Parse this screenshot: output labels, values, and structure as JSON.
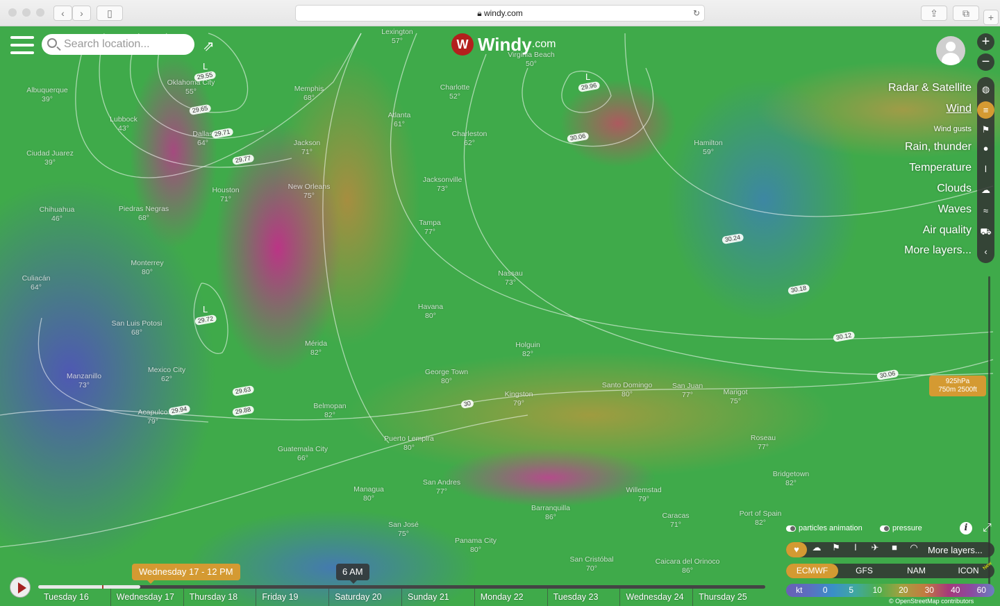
{
  "browser": {
    "url": "windy.com",
    "back": "‹",
    "forward": "›"
  },
  "header": {
    "search_placeholder": "Search location...",
    "logo_main": "Windy",
    "logo_suffix": ".com"
  },
  "layers": {
    "items": [
      {
        "label": "Radar & Satellite",
        "icon": "globe-icon",
        "glyph": "◍"
      },
      {
        "label": "Wind",
        "icon": "wind-icon",
        "glyph": "≡",
        "selected": true
      },
      {
        "label": "Wind gusts",
        "icon": "windsock-icon",
        "glyph": "⚑",
        "small": true
      },
      {
        "label": "Rain, thunder",
        "icon": "drop-icon",
        "glyph": "●"
      },
      {
        "label": "Temperature",
        "icon": "thermometer-icon",
        "glyph": "ǀ"
      },
      {
        "label": "Clouds",
        "icon": "cloud-icon",
        "glyph": "☁"
      },
      {
        "label": "Waves",
        "icon": "waves-icon",
        "glyph": "≈"
      },
      {
        "label": "Air quality",
        "icon": "car-icon",
        "glyph": "⛟"
      },
      {
        "label": "More layers...",
        "icon": "chevron-left-icon",
        "glyph": "‹"
      }
    ]
  },
  "altitude": {
    "line1": "925hPa",
    "line2": "750m 2500ft"
  },
  "toggles": {
    "particles": "particles animation",
    "pressure": "pressure"
  },
  "quick_layers": {
    "icons": [
      {
        "icon": "heart-icon",
        "glyph": "♥"
      },
      {
        "icon": "cloud-sun-icon",
        "glyph": "☁"
      },
      {
        "icon": "windsock-icon",
        "glyph": "⚑"
      },
      {
        "icon": "thermometer-icon",
        "glyph": "ǀ"
      },
      {
        "icon": "plane-icon",
        "glyph": "✈"
      },
      {
        "icon": "camera-icon",
        "glyph": "■"
      },
      {
        "icon": "radar-icon",
        "glyph": "◠"
      }
    ],
    "more": "More layers..."
  },
  "models": {
    "items": [
      "ECMWF",
      "GFS",
      "NAM",
      "ICON"
    ],
    "selected": "ECMWF",
    "new_badge": "New"
  },
  "scale": {
    "unit": "kt",
    "values": [
      "0",
      "5",
      "10",
      "20",
      "30",
      "40",
      "60"
    ]
  },
  "attribution": "© OpenStreetMap contributors",
  "timeline": {
    "current": "Wednesday 17 - 12 PM",
    "hover": "6 AM",
    "progress_days": 1.4,
    "days": [
      "Tuesday 16",
      "Wednesday 17",
      "Thursday 18",
      "Friday 19",
      "Saturday 20",
      "Sunday 21",
      "Monday 22",
      "Tuesday 23",
      "Wednesday 24",
      "Thursday 25"
    ]
  },
  "cities": [
    [
      "Lexington",
      "57°"
    ],
    [
      "Oklahoma City",
      "55°"
    ],
    [
      "Memphis",
      "68°"
    ],
    [
      "Albuquerque",
      "39°"
    ],
    [
      "Charlotte",
      "52°"
    ],
    [
      "Virginia Beach",
      "50°"
    ],
    [
      "Lubbock",
      "43°"
    ],
    [
      "Atlanta",
      "61°"
    ],
    [
      "Dallas",
      "64°"
    ],
    [
      "Charleston",
      "62°"
    ],
    [
      "Jackson",
      "71°"
    ],
    [
      "Ciudad Juarez",
      "39°"
    ],
    [
      "Hamilton",
      "59°"
    ],
    [
      "Houston",
      "71°"
    ],
    [
      "New Orleans",
      "75°"
    ],
    [
      "Jacksonville",
      "73°"
    ],
    [
      "Chihuahua",
      "46°"
    ],
    [
      "Piedras Negras",
      "68°"
    ],
    [
      "Tampa",
      "77°"
    ],
    [
      "Monterrey",
      "80°"
    ],
    [
      "Nassau",
      "73°"
    ],
    [
      "Culiacán",
      "64°"
    ],
    [
      "Havana",
      "80°"
    ],
    [
      "San Luis Potosi",
      "68°"
    ],
    [
      "Mérida",
      "82°"
    ],
    [
      "Holguin",
      "82°"
    ],
    [
      "George Town",
      "80°"
    ],
    [
      "Mexico City",
      "62°"
    ],
    [
      "Santo Domingo",
      "80°"
    ],
    [
      "San Juan",
      "77°"
    ],
    [
      "Marigot",
      "75°"
    ],
    [
      "Manzanillo",
      "73°"
    ],
    [
      "Kingston",
      "79°"
    ],
    [
      "Acapulco",
      "79°"
    ],
    [
      "Belmopan",
      "82°"
    ],
    [
      "Puerto Lempira",
      "80°"
    ],
    [
      "Roseau",
      "77°"
    ],
    [
      "Guatemala City",
      "66°"
    ],
    [
      "Bridgetown",
      "82°"
    ],
    [
      "San Andres",
      "77°"
    ],
    [
      "Managua",
      "80°"
    ],
    [
      "Willemstad",
      "79°"
    ],
    [
      "Barranquilla",
      "86°"
    ],
    [
      "Caracas",
      "71°"
    ],
    [
      "Port of Spain",
      "82°"
    ],
    [
      "San José",
      "75°"
    ],
    [
      "Panama City",
      "80°"
    ],
    [
      "San Cristóbal",
      "70°"
    ],
    [
      "Caicara del Orinoco",
      "86°"
    ]
  ],
  "isobars": [
    "29.55",
    "29.65",
    "29.71",
    "29.77",
    "29.96",
    "30.06",
    "30.24",
    "30.18",
    "30.12",
    "30.06",
    "30",
    "29.72",
    "29.63",
    "29.88",
    "29.94"
  ],
  "lows": [
    "L",
    "L",
    "L"
  ]
}
